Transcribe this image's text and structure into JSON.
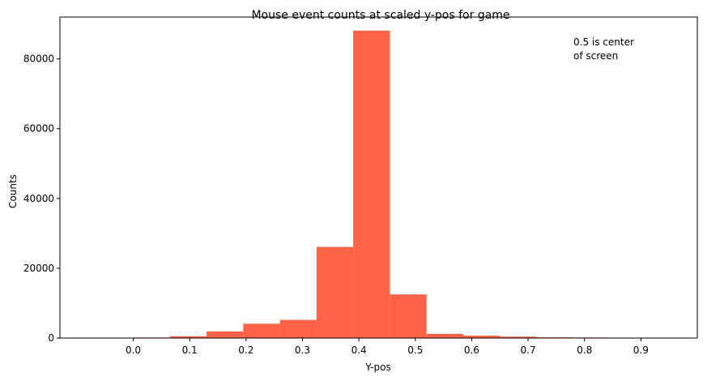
{
  "chart_data": {
    "type": "bar",
    "title": "Mouse event counts at scaled y-pos for game",
    "xlabel": "Y-pos",
    "ylabel": "Counts",
    "xlim": [
      -0.13,
      1.0
    ],
    "ylim": [
      0,
      92000
    ],
    "x_ticks": [
      0.0,
      0.1,
      0.2,
      0.3,
      0.4,
      0.5,
      0.6,
      0.7,
      0.8,
      0.9
    ],
    "x_tick_labels": [
      "0.0",
      "0.1",
      "0.2",
      "0.3",
      "0.4",
      "0.5",
      "0.6",
      "0.7",
      "0.8",
      "0.9"
    ],
    "y_ticks": [
      0,
      20000,
      40000,
      60000,
      80000
    ],
    "y_tick_labels": [
      "0",
      "20000",
      "40000",
      "60000",
      "80000"
    ],
    "bin_edges": [
      0.0,
      0.065,
      0.13,
      0.195,
      0.26,
      0.325,
      0.39,
      0.455,
      0.52,
      0.585,
      0.65,
      0.715,
      0.78,
      0.845
    ],
    "values": [
      150,
      500,
      1900,
      4100,
      5200,
      26100,
      88100,
      12500,
      1200,
      700,
      400,
      200,
      150
    ],
    "bar_color": "#ff6347",
    "annotation": [
      "0.5 is center",
      "of screen"
    ],
    "grid": false,
    "legend": "none"
  }
}
